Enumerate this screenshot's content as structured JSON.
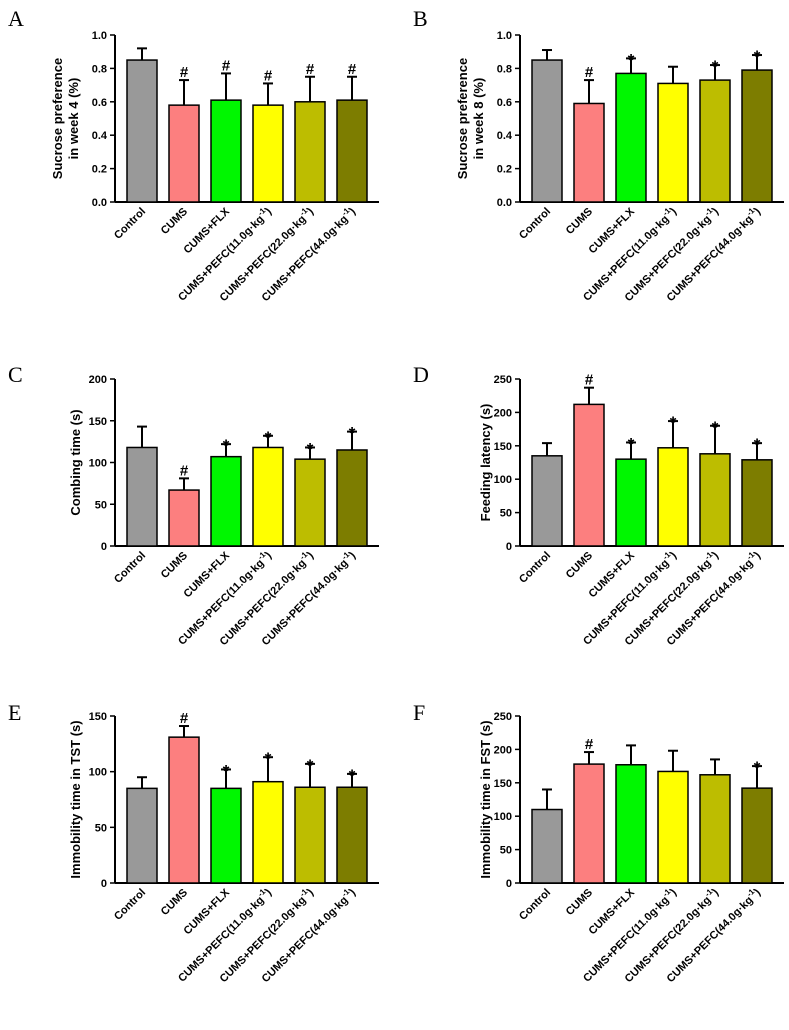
{
  "figure": {
    "title": ""
  },
  "colors": {
    "Control": "#999999",
    "CUMS": "#fc7f7f",
    "CUMS+FLX": "#00f700",
    "PEFC11": "#ffff00",
    "PEFC22": "#bdbd00",
    "PEFC44": "#7d7d00",
    "outline": "#000000"
  },
  "chart_data": [
    {
      "type": "bar",
      "panel": "A",
      "ylabel_lines": [
        "Sucrose preference",
        "in week 4 (%)"
      ],
      "ylim": [
        0,
        1.0
      ],
      "yticks": [
        0.0,
        0.2,
        0.4,
        0.6,
        0.8,
        1.0
      ],
      "ytick_labels": [
        "0.0",
        "0.2",
        "0.4",
        "0.6",
        "0.8",
        "1.0"
      ],
      "categories": [
        "Control",
        "CUMS",
        "CUMS+FLX",
        "CUMS+PEFC(11.0g·kg",
        "CUMS+PEFC(22.0g·kg",
        "CUMS+PEFC(44.0g·kg"
      ],
      "category_suffix": [
        null,
        null,
        null,
        "-1",
        "-1",
        "-1"
      ],
      "values": [
        0.85,
        0.58,
        0.61,
        0.58,
        0.6,
        0.61
      ],
      "errors": [
        0.07,
        0.15,
        0.16,
        0.13,
        0.15,
        0.14
      ],
      "annotations": [
        "",
        "#",
        "#",
        "#",
        "#",
        "#"
      ]
    },
    {
      "type": "bar",
      "panel": "B",
      "ylabel_lines": [
        "Sucrose preference",
        "in week 8 (%)"
      ],
      "ylim": [
        0,
        1.0
      ],
      "yticks": [
        0.0,
        0.2,
        0.4,
        0.6,
        0.8,
        1.0
      ],
      "ytick_labels": [
        "0.0",
        "0.2",
        "0.4",
        "0.6",
        "0.8",
        "1.0"
      ],
      "categories": [
        "Control",
        "CUMS",
        "CUMS+FLX",
        "CUMS+PEFC(11.0g·kg",
        "CUMS+PEFC(22.0g·kg",
        "CUMS+PEFC(44.0g·kg"
      ],
      "category_suffix": [
        null,
        null,
        null,
        "-1",
        "-1",
        "-1"
      ],
      "values": [
        0.85,
        0.59,
        0.77,
        0.71,
        0.73,
        0.79
      ],
      "errors": [
        0.06,
        0.14,
        0.09,
        0.1,
        0.09,
        0.09
      ],
      "annotations": [
        "",
        "#",
        "*",
        "",
        "*",
        "*"
      ]
    },
    {
      "type": "bar",
      "panel": "C",
      "ylabel_lines": [
        "Combing time (s)"
      ],
      "ylim": [
        0,
        200
      ],
      "yticks": [
        0,
        50,
        100,
        150,
        200
      ],
      "ytick_labels": [
        "0",
        "50",
        "100",
        "150",
        "200"
      ],
      "categories": [
        "Control",
        "CUMS",
        "CUMS+FLX",
        "CUMS+PEFC(11.0g·kg",
        "CUMS+PEFC(22.0g·kg",
        "CUMS+PEFC(44.0g·kg"
      ],
      "category_suffix": [
        null,
        null,
        null,
        "-1",
        "-1",
        "-1"
      ],
      "values": [
        118,
        67,
        107,
        118,
        104,
        115
      ],
      "errors": [
        25,
        14,
        15,
        14,
        14,
        22
      ],
      "annotations": [
        "",
        "#",
        "*",
        "*",
        "*",
        "*"
      ]
    },
    {
      "type": "bar",
      "panel": "D",
      "ylabel_lines": [
        "Feeding latency (s)"
      ],
      "ylim": [
        0,
        250
      ],
      "yticks": [
        0,
        50,
        100,
        150,
        200,
        250
      ],
      "ytick_labels": [
        "0",
        "50",
        "100",
        "150",
        "200",
        "250"
      ],
      "categories": [
        "Control",
        "CUMS",
        "CUMS+FLX",
        "CUMS+PEFC(11.0g·kg",
        "CUMS+PEFC(22.0g·kg",
        "CUMS+PEFC(44.0g·kg"
      ],
      "category_suffix": [
        null,
        null,
        null,
        "-1",
        "-1",
        "-1"
      ],
      "values": [
        135,
        212,
        130,
        147,
        138,
        129
      ],
      "errors": [
        19,
        25,
        25,
        40,
        42,
        25
      ],
      "annotations": [
        "",
        "#",
        "*",
        "*",
        "*",
        "*"
      ]
    },
    {
      "type": "bar",
      "panel": "E",
      "ylabel_lines": [
        "Immobility time in TST (s)"
      ],
      "ylim": [
        0,
        150
      ],
      "yticks": [
        0,
        50,
        100,
        150
      ],
      "ytick_labels": [
        "0",
        "50",
        "100",
        "150"
      ],
      "categories": [
        "Control",
        "CUMS",
        "CUMS+FLX",
        "CUMS+PEFC(11.0g·kg",
        "CUMS+PEFC(22.0g·kg",
        "CUMS+PEFC(44.0g·kg"
      ],
      "category_suffix": [
        null,
        null,
        null,
        "-1",
        "-1",
        "-1"
      ],
      "values": [
        85,
        131,
        85,
        91,
        86,
        86
      ],
      "errors": [
        10,
        10,
        17,
        22,
        21,
        12
      ],
      "annotations": [
        "",
        "#",
        "*",
        "*",
        "*",
        "*"
      ]
    },
    {
      "type": "bar",
      "panel": "F",
      "ylabel_lines": [
        "Immobility time in FST (s)"
      ],
      "ylim": [
        0,
        250
      ],
      "yticks": [
        0,
        50,
        100,
        150,
        200,
        250
      ],
      "ytick_labels": [
        "0",
        "50",
        "100",
        "150",
        "200",
        "250"
      ],
      "categories": [
        "Control",
        "CUMS",
        "CUMS+FLX",
        "CUMS+PEFC(11.0g·kg",
        "CUMS+PEFC(22.0g·kg",
        "CUMS+PEFC(44.0g·kg"
      ],
      "category_suffix": [
        null,
        null,
        null,
        "-1",
        "-1",
        "-1"
      ],
      "values": [
        110,
        178,
        177,
        167,
        162,
        142
      ],
      "errors": [
        30,
        18,
        29,
        31,
        23,
        33
      ],
      "annotations": [
        "",
        "#",
        "",
        "",
        "",
        "*"
      ]
    }
  ]
}
